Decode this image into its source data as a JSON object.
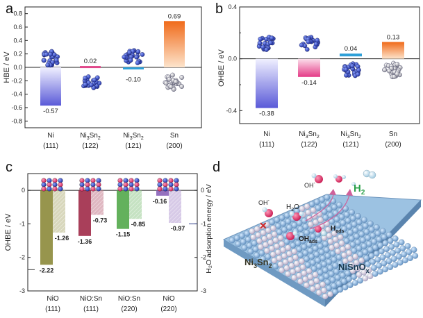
{
  "figure": {
    "panel_labels": [
      "a",
      "b",
      "c",
      "d"
    ]
  },
  "chart_data": [
    {
      "type": "bar",
      "panel": "a",
      "ylabel": "HBE / eV",
      "ylim": [
        -0.9,
        0.9
      ],
      "yticks": [
        "0.8",
        "0.6",
        "0.4",
        "0.2",
        "0.0",
        "-0.2",
        "-0.4",
        "-0.6",
        "-0.8"
      ],
      "categories": [
        {
          "name": "Ni",
          "sub": "",
          "suffix": "",
          "facet": "(111)"
        },
        {
          "name": "Ni",
          "sub": "3",
          "suffix": "Sn",
          "sub2": "2",
          "facet": "(122)"
        },
        {
          "name": "Ni",
          "sub": "3",
          "suffix": "Sn",
          "sub2": "2",
          "facet": "(121)"
        },
        {
          "name": "Sn",
          "sub": "",
          "suffix": "",
          "facet": "(200)"
        }
      ],
      "values": [
        -0.57,
        0.02,
        -0.1,
        0.69
      ],
      "value_labels": [
        "-0.57",
        "0.02",
        "-0.10",
        "0.69"
      ],
      "colors": [
        "#6f6fe0",
        "#e0488a",
        "#2ea0d8",
        "#f07a2a"
      ]
    },
    {
      "type": "bar",
      "panel": "b",
      "ylabel": "OHBE / eV",
      "ylim": [
        -0.5,
        0.4
      ],
      "yticks": [
        "0.4",
        "0.0",
        "-0.4"
      ],
      "categories": [
        {
          "name": "Ni",
          "sub": "",
          "suffix": "",
          "facet": "(111)"
        },
        {
          "name": "Ni",
          "sub": "3",
          "suffix": "Sn",
          "sub2": "2",
          "facet": "(122)"
        },
        {
          "name": "Ni",
          "sub": "3",
          "suffix": "Sn",
          "sub2": "2",
          "facet": "(121)"
        },
        {
          "name": "Sn",
          "sub": "",
          "suffix": "",
          "facet": "(200)"
        }
      ],
      "values": [
        -0.38,
        -0.14,
        0.04,
        0.13
      ],
      "value_labels": [
        "-0.38",
        "-0.14",
        "0.04",
        "0.13"
      ],
      "colors": [
        "#6f6fe0",
        "#e0488a",
        "#2ea0d8",
        "#f07a2a"
      ]
    },
    {
      "type": "bar",
      "panel": "c",
      "ylabel": "OHBE / eV",
      "y2label": "H₂O adsorption energy / eV",
      "ylim": [
        -3,
        0.5
      ],
      "yticks": [
        "0",
        "-1",
        "-2",
        "-3"
      ],
      "y2ticks": [
        "0",
        "-1",
        "-2",
        "-3"
      ],
      "categories": [
        {
          "name": "NiO",
          "facet": "(111)"
        },
        {
          "name": "NiO:Sn",
          "facet": "(111)"
        },
        {
          "name": "NiO:Sn",
          "facet": "(220)"
        },
        {
          "name": "NiO",
          "facet": "(220)"
        }
      ],
      "series": [
        {
          "name": "OHBE",
          "values": [
            -2.22,
            -1.36,
            -1.15,
            -0.16
          ],
          "labels": [
            "-2.22",
            "-1.36",
            "-1.15",
            "-0.16"
          ]
        },
        {
          "name": "H2O adsorption energy",
          "values": [
            -1.26,
            -0.73,
            -0.85,
            -0.97
          ],
          "labels": [
            "-1.26",
            "-0.73",
            "-0.85",
            "-0.97"
          ]
        }
      ],
      "colors": [
        "#8c8a3a",
        "#a02a48",
        "#52a84a",
        "#8a62b8"
      ]
    }
  ],
  "panel_d": {
    "labels": {
      "oh_minus_left": "OH",
      "oh_minus_left_sup": "-",
      "h2o": "H",
      "h2o_sub": "2",
      "h2o_end": "O",
      "oh_minus_top": "OH",
      "oh_minus_top_sup": "-",
      "h2": "H",
      "h2_sub": "2",
      "ohads": "OH",
      "ohads_sub": "ads",
      "hads": "H",
      "hads_sub": "ads",
      "ni3sn2": "Ni",
      "ni3sn2_a": "3",
      "ni3sn2_b": "Sn",
      "ni3sn2_c": "2",
      "nisnox": "NiSnO",
      "nisnox_sub": "x",
      "cross": "✕"
    },
    "colors": {
      "oxygen": "#e8336b",
      "hydrogen": "#c8e4f4",
      "surface": "#8ab4d8",
      "nickel": "#d8d0e0",
      "h2_text": "#2aa04a"
    }
  }
}
